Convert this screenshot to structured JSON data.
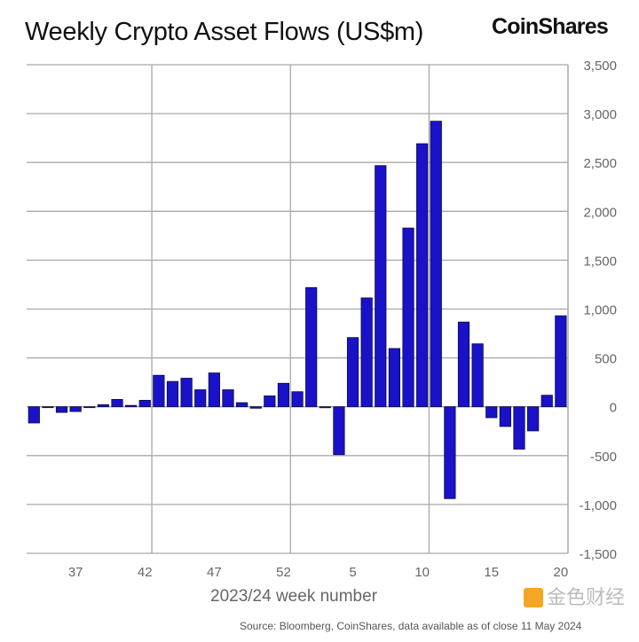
{
  "title": "Weekly Crypto Asset Flows (US$m)",
  "logo": "CoinShares",
  "source": "Source: Bloomberg, CoinShares, data available as of close 11 May 2024",
  "watermark": "金色财经",
  "chart_data": {
    "type": "bar",
    "title": "Weekly Crypto Asset Flows (US$m)",
    "xlabel": "2023/24 week number",
    "ylabel": "",
    "ylim": [
      -1500,
      3500
    ],
    "yticks": [
      -1500,
      -1000,
      -500,
      0,
      500,
      1000,
      1500,
      2000,
      2500,
      3000,
      3500
    ],
    "ytick_labels": [
      "-1,500",
      "-1,000",
      "-500",
      "0",
      "500",
      "1,000",
      "1,500",
      "2,000",
      "2,500",
      "3,000",
      "3,500"
    ],
    "y_axis_side": "right",
    "grid": true,
    "bar_color": "#1a12c8",
    "xtick_labels": [
      "37",
      "42",
      "47",
      "52",
      "5",
      "10",
      "15",
      "20"
    ],
    "categories": [
      "34",
      "35",
      "36",
      "37",
      "38",
      "39",
      "40",
      "41",
      "42",
      "43",
      "44",
      "45",
      "46",
      "47",
      "48",
      "49",
      "50",
      "51",
      "52",
      "1",
      "2",
      "3",
      "4",
      "5",
      "6",
      "7",
      "8",
      "9",
      "10",
      "11",
      "12",
      "13",
      "14",
      "15",
      "16",
      "17",
      "18",
      "19",
      "20"
    ],
    "values": [
      -166,
      0,
      -58,
      -49,
      -5,
      21,
      75,
      14,
      66,
      322,
      259,
      292,
      174,
      346,
      174,
      42,
      -15,
      111,
      240,
      154,
      1220,
      -10,
      -490,
      708,
      1114,
      2468,
      596,
      1829,
      2692,
      2922,
      -940,
      867,
      644,
      -112,
      -202,
      -434,
      -247,
      118,
      931
    ]
  }
}
